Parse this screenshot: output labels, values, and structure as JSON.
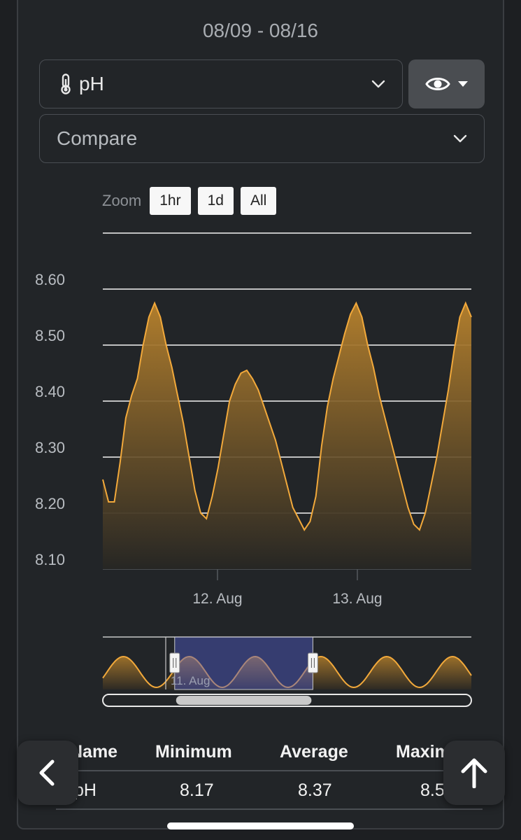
{
  "header": {
    "date_range": "08/09 - 08/16"
  },
  "metric_select": {
    "label": "pH",
    "icon": "thermometer-icon"
  },
  "visibility_button": {
    "icon": "eye-icon"
  },
  "compare_select": {
    "label": "Compare"
  },
  "zoom": {
    "label": "Zoom",
    "options": [
      "1hr",
      "1d",
      "All"
    ]
  },
  "chart_data": {
    "type": "area",
    "y_ticks": [
      "8.60",
      "8.50",
      "8.40",
      "8.30",
      "8.20",
      "8.10"
    ],
    "ylim": [
      8.1,
      8.7
    ],
    "x_tick_labels": [
      "12. Aug",
      "13. Aug"
    ],
    "series": [
      {
        "color": "#f2a93b",
        "x_hours": [
          0,
          1,
          2,
          3,
          4,
          5,
          6,
          7,
          8,
          9,
          10,
          11,
          12,
          13,
          14,
          15,
          16,
          17,
          18,
          19,
          20,
          21,
          22,
          23,
          24,
          25,
          26,
          27,
          28,
          29,
          30,
          31,
          32,
          33,
          34,
          35,
          36,
          37,
          38,
          39,
          40,
          41,
          42,
          43,
          44,
          45,
          46,
          47,
          48,
          49,
          50,
          51,
          52,
          53,
          54,
          55,
          56,
          57,
          58,
          59,
          60,
          61,
          62,
          63,
          64
        ],
        "values": [
          8.26,
          8.22,
          8.22,
          8.29,
          8.37,
          8.41,
          8.44,
          8.5,
          8.55,
          8.575,
          8.55,
          8.5,
          8.46,
          8.41,
          8.36,
          8.3,
          8.24,
          8.2,
          8.19,
          8.23,
          8.28,
          8.34,
          8.4,
          8.43,
          8.45,
          8.455,
          8.44,
          8.42,
          8.39,
          8.36,
          8.33,
          8.29,
          8.25,
          8.21,
          8.19,
          8.17,
          8.185,
          8.23,
          8.32,
          8.39,
          8.44,
          8.48,
          8.52,
          8.555,
          8.575,
          8.55,
          8.5,
          8.46,
          8.41,
          8.37,
          8.33,
          8.29,
          8.25,
          8.21,
          8.18,
          8.17,
          8.2,
          8.25,
          8.3,
          8.36,
          8.42,
          8.49,
          8.55,
          8.575,
          8.55
        ]
      }
    ],
    "navigator": {
      "label": "11. Aug",
      "selection": [
        0.195,
        0.57
      ]
    }
  },
  "table": {
    "headers": [
      "Name",
      "Minimum",
      "Average",
      "Maximum"
    ],
    "rows": [
      [
        "pH",
        "8.17",
        "8.37",
        "8.57"
      ]
    ]
  },
  "nav": {
    "back_icon": "chevron-left-icon",
    "top_icon": "arrow-up-icon"
  }
}
